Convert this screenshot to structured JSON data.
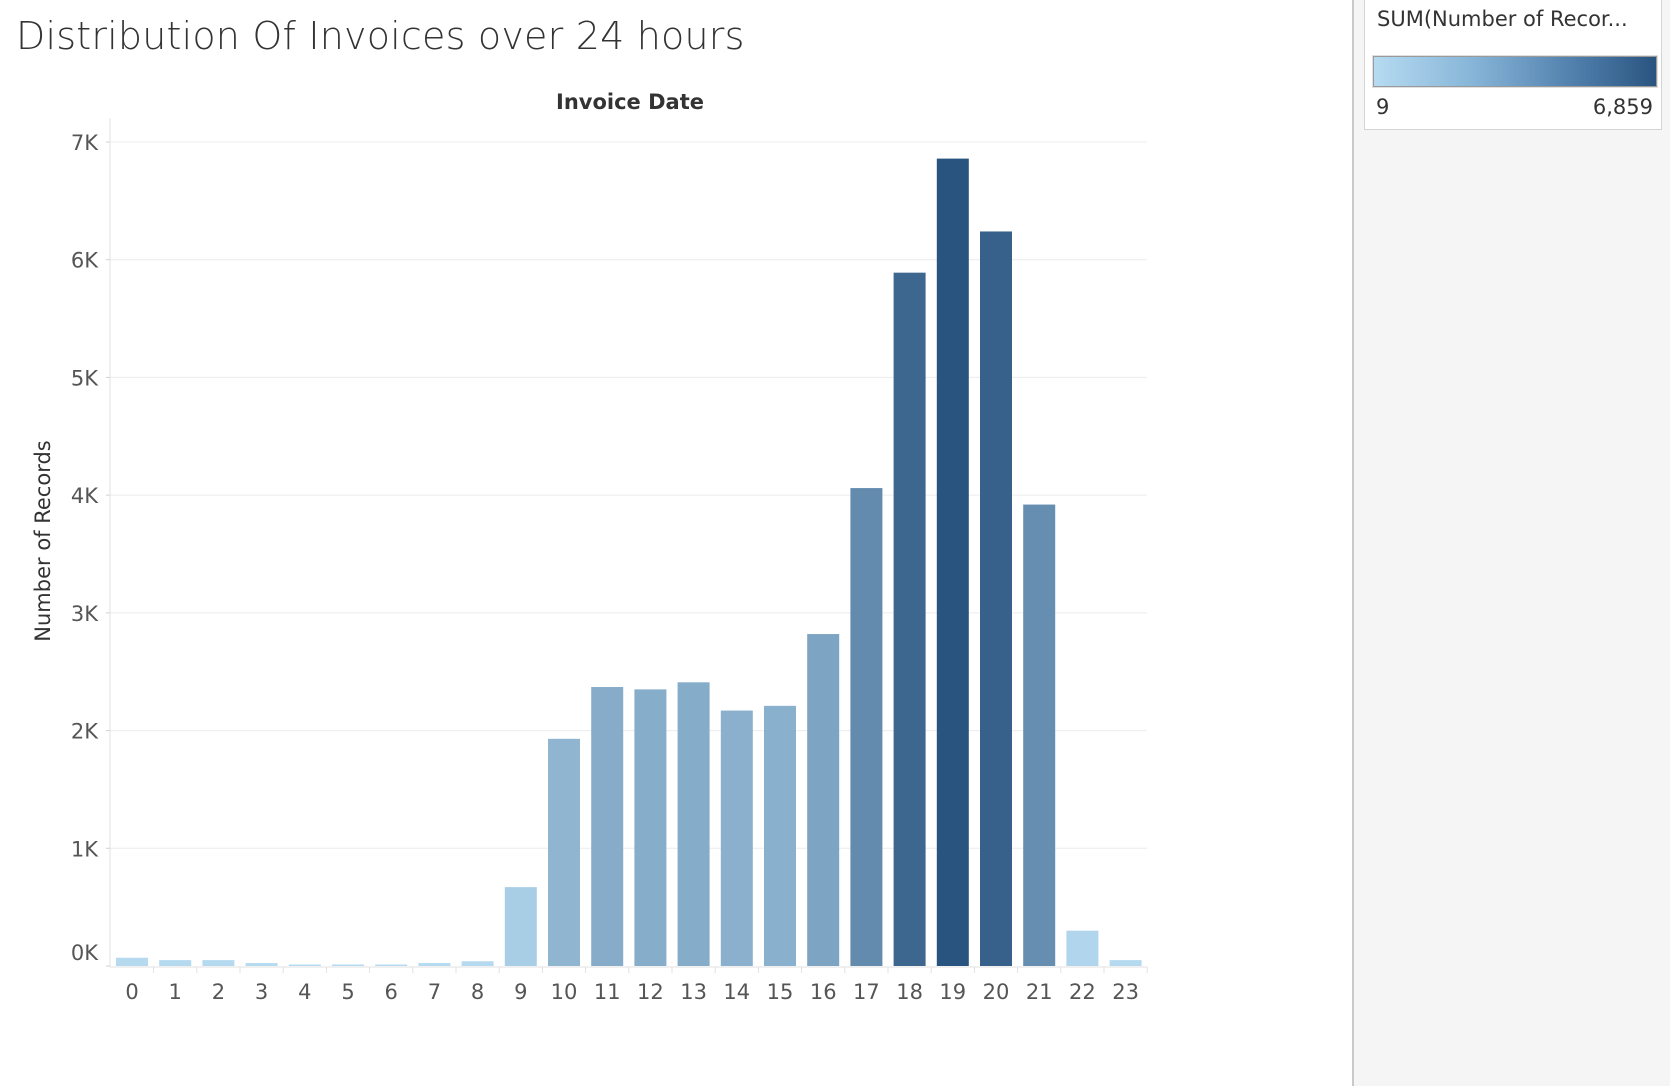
{
  "page_title": "Distribution Of Invoices over 24 hours",
  "legend": {
    "title": "SUM(Number of Recor...",
    "min_label": "9",
    "max_label": "6,859",
    "color_low": "#b6dbf1",
    "color_high": "#2a5480"
  },
  "chart_data": {
    "type": "bar",
    "title": "Distribution Of Invoices over 24 hours",
    "column_header": "Invoice Date",
    "xlabel": "",
    "ylabel": "Number of Records",
    "categories": [
      "0",
      "1",
      "2",
      "3",
      "4",
      "5",
      "6",
      "7",
      "8",
      "9",
      "10",
      "11",
      "12",
      "13",
      "14",
      "15",
      "16",
      "17",
      "18",
      "19",
      "20",
      "21",
      "22",
      "23"
    ],
    "values": [
      70,
      50,
      50,
      25,
      10,
      9,
      10,
      25,
      40,
      670,
      1930,
      2370,
      2350,
      2410,
      2170,
      2210,
      2820,
      4060,
      5890,
      6859,
      6240,
      3920,
      300,
      50
    ],
    "ylim": [
      0,
      7000
    ],
    "yticks": [
      0,
      1000,
      2000,
      3000,
      4000,
      5000,
      6000,
      7000
    ],
    "ytick_labels": [
      "0K",
      "1K",
      "2K",
      "3K",
      "4K",
      "5K",
      "6K",
      "7K"
    ],
    "grid": true,
    "color_scale": {
      "min": 9,
      "max": 6859,
      "low": "#b6dbf1",
      "high": "#2a5480"
    },
    "legend_position": "top-right"
  }
}
